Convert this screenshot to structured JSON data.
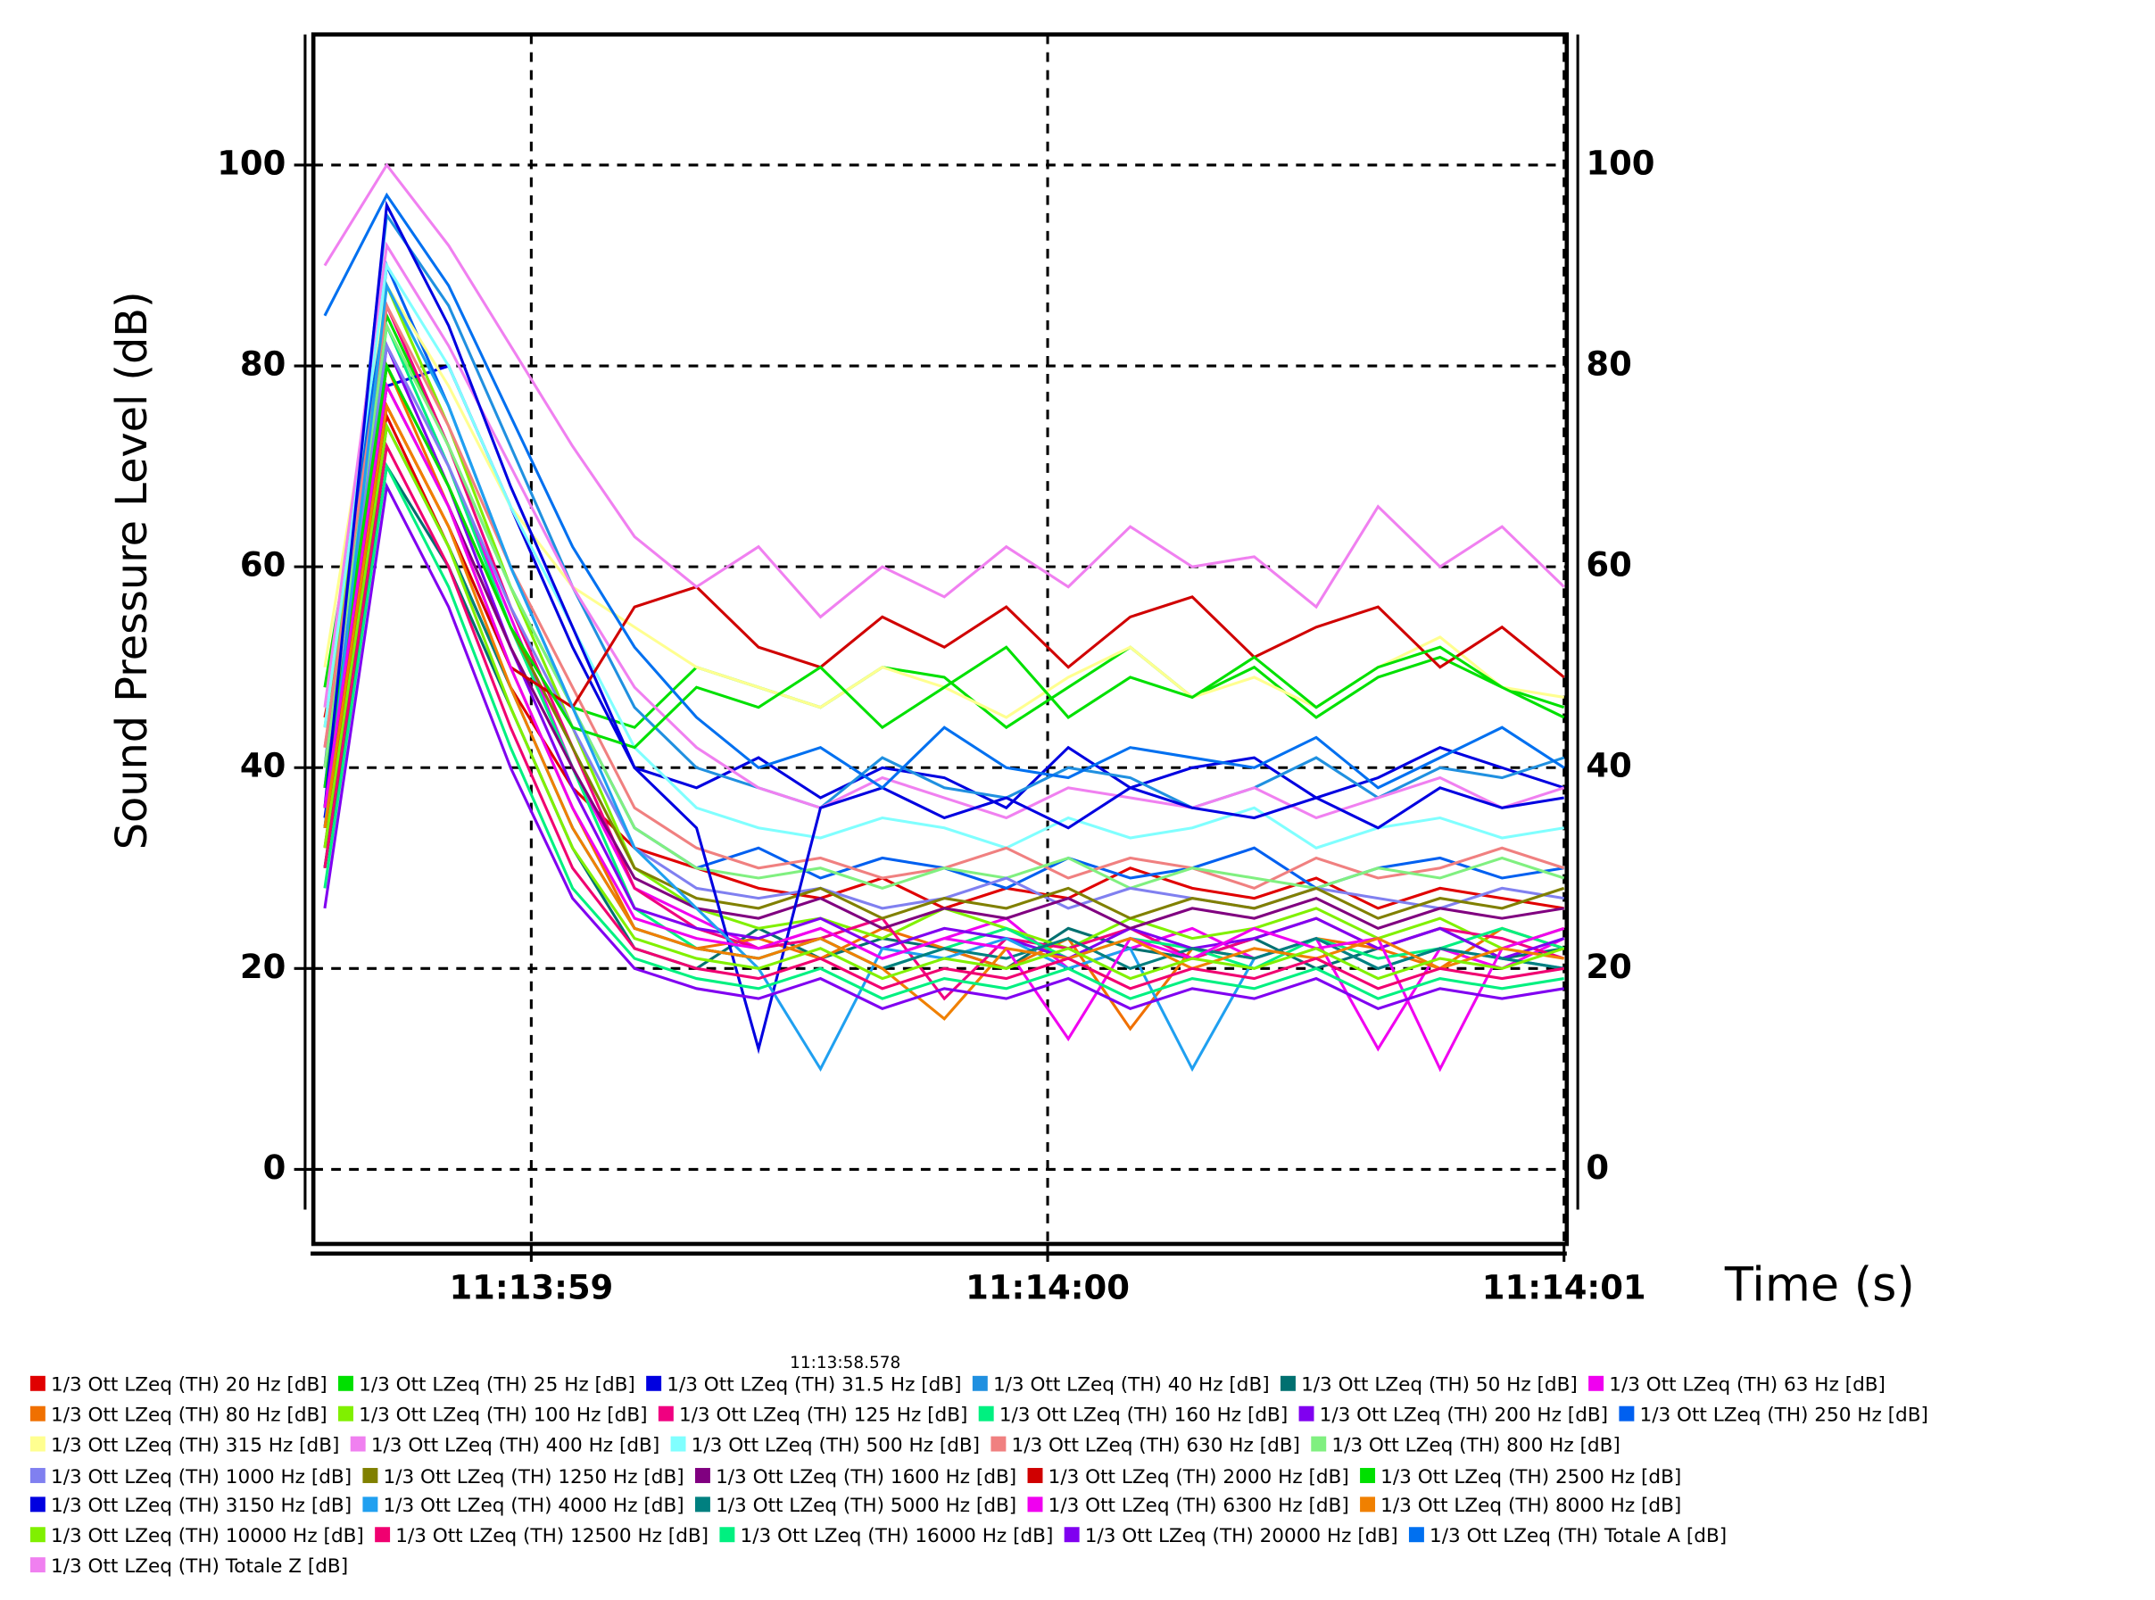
{
  "chart_data": {
    "type": "line",
    "y_label": "Sound Pressure Level (dB)",
    "x_label": "Time (s)",
    "cursor_label": "11:13:58.578",
    "grid": true,
    "xlim": [
      58.578,
      61
    ],
    "xticks": [
      {
        "value": 59,
        "label": "11:13:59"
      },
      {
        "value": 60,
        "label": "11:14:00"
      },
      {
        "value": 61,
        "label": "11:14:01"
      }
    ],
    "ylim": [
      -4,
      113
    ],
    "yticks": [
      0,
      20,
      40,
      60,
      80,
      100
    ],
    "x": [
      58.6,
      58.72,
      58.84,
      58.96,
      59.08,
      59.2,
      59.32,
      59.44,
      59.56,
      59.68,
      59.8,
      59.92,
      60.04,
      60.16,
      60.28,
      60.4,
      60.52,
      60.64,
      60.76,
      60.88,
      61.0
    ],
    "series": [
      {
        "name": "1/3 Ott LZeq (TH) 20 Hz [dB]",
        "color": "#e00000",
        "values": [
          45,
          75,
          62,
          48,
          38,
          32,
          30,
          28,
          27,
          29,
          26,
          28,
          27,
          30,
          28,
          27,
          29,
          26,
          28,
          27,
          26
        ]
      },
      {
        "name": "1/3 Ott LZeq (TH) 25 Hz [dB]",
        "color": "#00e000",
        "values": [
          48,
          85,
          72,
          58,
          46,
          44,
          50,
          48,
          46,
          50,
          49,
          44,
          48,
          52,
          47,
          50,
          45,
          49,
          51,
          48,
          46
        ]
      },
      {
        "name": "1/3 Ott LZeq (TH) 31.5 Hz [dB]",
        "color": "#0000e0",
        "values": [
          35,
          78,
          80,
          66,
          52,
          40,
          38,
          41,
          37,
          40,
          39,
          36,
          42,
          38,
          40,
          41,
          37,
          39,
          42,
          40,
          38
        ]
      },
      {
        "name": "1/3 Ott LZeq (TH) 40 Hz [dB]",
        "color": "#2090e0",
        "values": [
          40,
          95,
          86,
          72,
          58,
          46,
          40,
          38,
          36,
          41,
          38,
          37,
          40,
          39,
          36,
          38,
          41,
          37,
          40,
          39,
          41
        ]
      },
      {
        "name": "1/3 Ott LZeq (TH) 50 Hz [dB]",
        "color": "#007070",
        "values": [
          30,
          70,
          60,
          46,
          32,
          22,
          20,
          24,
          21,
          23,
          22,
          20,
          24,
          22,
          21,
          23,
          20,
          22,
          24,
          21,
          22
        ]
      },
      {
        "name": "1/3 Ott LZeq (TH) 63 Hz [dB]",
        "color": "#f000f0",
        "values": [
          42,
          82,
          70,
          55,
          40,
          28,
          25,
          22,
          24,
          21,
          23,
          25,
          20,
          22,
          24,
          21,
          23,
          12,
          22,
          20,
          23
        ]
      },
      {
        "name": "1/3 Ott LZeq (TH) 80 Hz [dB]",
        "color": "#f07000",
        "values": [
          38,
          80,
          66,
          50,
          36,
          24,
          22,
          23,
          21,
          24,
          22,
          20,
          23,
          14,
          22,
          21,
          23,
          22,
          20,
          24,
          22
        ]
      },
      {
        "name": "1/3 Ott LZeq (TH) 100 Hz [dB]",
        "color": "#80f000",
        "values": [
          44,
          88,
          74,
          58,
          44,
          30,
          26,
          24,
          25,
          23,
          26,
          24,
          22,
          25,
          23,
          24,
          26,
          23,
          25,
          22,
          24
        ]
      },
      {
        "name": "1/3 Ott LZeq (TH) 125 Hz [dB]",
        "color": "#f00080",
        "values": [
          40,
          86,
          72,
          56,
          42,
          28,
          24,
          22,
          23,
          25,
          17,
          23,
          22,
          24,
          21,
          23,
          25,
          22,
          24,
          23,
          21
        ]
      },
      {
        "name": "1/3 Ott LZeq (TH) 160 Hz [dB]",
        "color": "#00f080",
        "values": [
          36,
          84,
          70,
          54,
          40,
          26,
          22,
          21,
          23,
          20,
          22,
          24,
          21,
          23,
          22,
          20,
          23,
          21,
          22,
          24,
          22
        ]
      },
      {
        "name": "1/3 Ott LZeq (TH) 200 Hz [dB]",
        "color": "#8000f0",
        "values": [
          34,
          82,
          68,
          52,
          38,
          26,
          24,
          23,
          25,
          22,
          24,
          23,
          21,
          24,
          22,
          23,
          25,
          22,
          24,
          21,
          23
        ]
      },
      {
        "name": "1/3 Ott LZeq (TH) 250 Hz [dB]",
        "color": "#0060f0",
        "values": [
          38,
          90,
          76,
          60,
          46,
          34,
          30,
          32,
          29,
          31,
          30,
          28,
          31,
          29,
          30,
          32,
          28,
          30,
          31,
          29,
          30
        ]
      },
      {
        "name": "1/3 Ott LZeq (TH) 315 Hz [dB]",
        "color": "#ffff90",
        "values": [
          50,
          88,
          78,
          66,
          58,
          54,
          50,
          48,
          46,
          50,
          48,
          45,
          49,
          52,
          47,
          49,
          46,
          50,
          53,
          48,
          47
        ]
      },
      {
        "name": "1/3 Ott LZeq (TH) 400 Hz [dB]",
        "color": "#f080f0",
        "values": [
          46,
          92,
          82,
          70,
          58,
          48,
          42,
          38,
          36,
          39,
          37,
          35,
          38,
          37,
          36,
          38,
          35,
          37,
          39,
          36,
          38
        ]
      },
      {
        "name": "1/3 Ott LZeq (TH) 500 Hz [dB]",
        "color": "#80ffff",
        "values": [
          44,
          90,
          80,
          66,
          54,
          42,
          36,
          34,
          33,
          35,
          34,
          32,
          35,
          33,
          34,
          36,
          32,
          34,
          35,
          33,
          34
        ]
      },
      {
        "name": "1/3 Ott LZeq (TH) 630 Hz [dB]",
        "color": "#f08080",
        "values": [
          42,
          86,
          74,
          60,
          48,
          36,
          32,
          30,
          31,
          29,
          30,
          32,
          29,
          31,
          30,
          28,
          31,
          29,
          30,
          32,
          30
        ]
      },
      {
        "name": "1/3 Ott LZeq (TH) 800 Hz [dB]",
        "color": "#80f080",
        "values": [
          40,
          84,
          72,
          58,
          46,
          34,
          30,
          29,
          30,
          28,
          30,
          29,
          31,
          28,
          30,
          29,
          28,
          30,
          29,
          31,
          29
        ]
      },
      {
        "name": "1/3 Ott LZeq (TH) 1000 Hz [dB]",
        "color": "#8080f0",
        "values": [
          38,
          82,
          70,
          56,
          44,
          32,
          28,
          27,
          28,
          26,
          27,
          29,
          26,
          28,
          27,
          26,
          28,
          27,
          26,
          28,
          27
        ]
      },
      {
        "name": "1/3 Ott LZeq (TH) 1250 Hz [dB]",
        "color": "#808000",
        "values": [
          36,
          80,
          68,
          54,
          42,
          30,
          27,
          26,
          28,
          25,
          27,
          26,
          28,
          25,
          27,
          26,
          28,
          25,
          27,
          26,
          28
        ]
      },
      {
        "name": "1/3 Ott LZeq (TH) 1600 Hz [dB]",
        "color": "#800080",
        "values": [
          34,
          78,
          66,
          52,
          40,
          29,
          26,
          25,
          27,
          24,
          26,
          25,
          27,
          24,
          26,
          25,
          27,
          24,
          26,
          25,
          26
        ]
      },
      {
        "name": "1/3 Ott LZeq (TH) 2000 Hz [dB]",
        "color": "#d00000",
        "values": [
          32,
          76,
          64,
          50,
          46,
          56,
          58,
          52,
          50,
          55,
          52,
          56,
          50,
          55,
          57,
          51,
          54,
          56,
          50,
          54,
          49
        ]
      },
      {
        "name": "1/3 Ott LZeq (TH) 2500 Hz [dB]",
        "color": "#00e000",
        "values": [
          38,
          80,
          68,
          54,
          44,
          42,
          48,
          46,
          50,
          44,
          48,
          52,
          45,
          49,
          47,
          51,
          46,
          50,
          52,
          48,
          45
        ]
      },
      {
        "name": "1/3 Ott LZeq (TH) 3150 Hz [dB]",
        "color": "#0000e0",
        "values": [
          36,
          96,
          84,
          68,
          54,
          40,
          34,
          12,
          36,
          38,
          35,
          37,
          34,
          38,
          36,
          35,
          37,
          34,
          38,
          36,
          37
        ]
      },
      {
        "name": "1/3 Ott LZeq (TH) 4000 Hz [dB]",
        "color": "#20a0f0",
        "values": [
          34,
          88,
          76,
          60,
          46,
          32,
          26,
          20,
          10,
          22,
          21,
          23,
          20,
          22,
          10,
          21,
          23,
          20,
          22,
          21,
          20
        ]
      },
      {
        "name": "1/3 Ott LZeq (TH) 5000 Hz [dB]",
        "color": "#008080",
        "values": [
          30,
          74,
          62,
          48,
          34,
          24,
          22,
          21,
          23,
          20,
          22,
          21,
          23,
          20,
          22,
          21,
          23,
          20,
          22,
          21,
          20
        ]
      },
      {
        "name": "1/3 Ott LZeq (TH) 6300 Hz [dB]",
        "color": "#f000f0",
        "values": [
          36,
          78,
          66,
          50,
          36,
          25,
          23,
          22,
          24,
          21,
          23,
          22,
          13,
          23,
          21,
          24,
          22,
          23,
          10,
          22,
          24
        ]
      },
      {
        "name": "1/3 Ott LZeq (TH) 8000 Hz [dB]",
        "color": "#f08000",
        "values": [
          34,
          76,
          64,
          48,
          34,
          24,
          22,
          21,
          23,
          20,
          15,
          22,
          21,
          23,
          20,
          22,
          21,
          23,
          20,
          22,
          21
        ]
      },
      {
        "name": "1/3 Ott LZeq (TH) 10000 Hz [dB]",
        "color": "#80f000",
        "values": [
          32,
          74,
          62,
          46,
          32,
          23,
          21,
          20,
          22,
          19,
          21,
          20,
          22,
          19,
          21,
          20,
          22,
          19,
          21,
          20,
          22
        ]
      },
      {
        "name": "1/3 Ott LZeq (TH) 12500 Hz [dB]",
        "color": "#f00070",
        "values": [
          30,
          72,
          60,
          44,
          30,
          22,
          20,
          19,
          21,
          18,
          20,
          19,
          21,
          18,
          20,
          19,
          21,
          18,
          20,
          19,
          20
        ]
      },
      {
        "name": "1/3 Ott LZeq (TH) 16000 Hz [dB]",
        "color": "#00f080",
        "values": [
          28,
          70,
          58,
          42,
          28,
          21,
          19,
          18,
          20,
          17,
          19,
          18,
          20,
          17,
          19,
          18,
          20,
          17,
          19,
          18,
          19
        ]
      },
      {
        "name": "1/3 Ott LZeq (TH) 20000 Hz [dB]",
        "color": "#8000f0",
        "values": [
          26,
          68,
          56,
          40,
          27,
          20,
          18,
          17,
          19,
          16,
          18,
          17,
          19,
          16,
          18,
          17,
          19,
          16,
          18,
          17,
          18
        ]
      },
      {
        "name": "1/3 Ott LZeq (TH) Totale A [dB]",
        "color": "#0070f0",
        "values": [
          85,
          97,
          88,
          75,
          62,
          52,
          45,
          40,
          42,
          38,
          44,
          40,
          39,
          42,
          41,
          40,
          43,
          38,
          41,
          44,
          40
        ]
      },
      {
        "name": "1/3 Ott LZeq (TH) Totale Z [dB]",
        "color": "#f080f0",
        "values": [
          90,
          100,
          92,
          82,
          72,
          63,
          58,
          62,
          55,
          60,
          57,
          62,
          58,
          64,
          60,
          61,
          56,
          66,
          60,
          64,
          58
        ]
      }
    ]
  }
}
